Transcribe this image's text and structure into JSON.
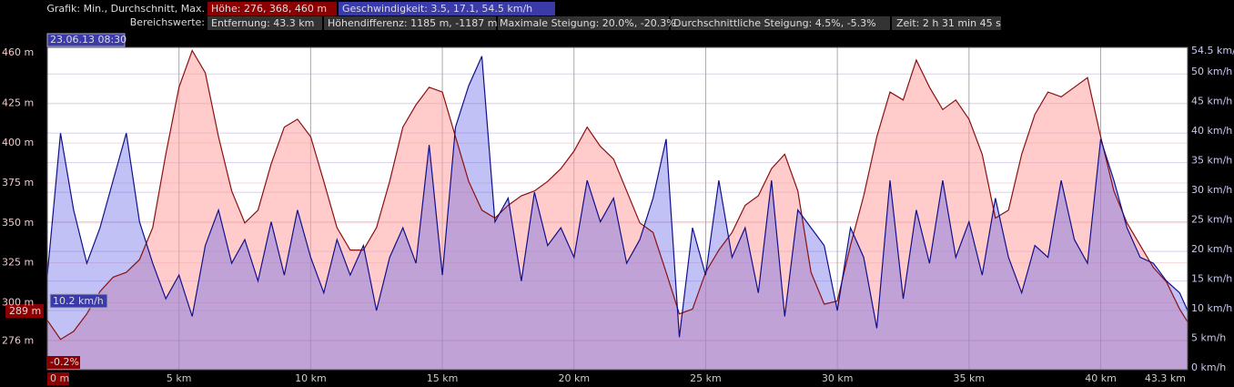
{
  "header": {
    "label": "Grafik: Min., Durchschnitt, Max.",
    "elevation_stats": "Höhe: 276, 368, 460 m",
    "speed_stats": "Geschwindigkeit: 3.5, 17.1, 54.5 km/h",
    "range_label": "Bereichswerte:",
    "range_values": [
      "Entfernung: 43.3 km",
      "Höhendifferenz: 1185 m, -1187 m",
      "Maximale Steigung: 20.0%, -20.3%",
      "Durchschnittliche Steigung: 4.5%, -5.3%",
      "Zeit: 2 h 31 min 45 s"
    ]
  },
  "cursor": {
    "time": "23.06.13 08:30",
    "speed": "10.2 km/h",
    "elevation": "289 m",
    "grade": "-0.2%"
  },
  "chart_data": {
    "type": "line",
    "x": [
      0,
      0.5,
      1,
      1.5,
      2,
      2.5,
      3,
      3.5,
      4,
      4.5,
      5,
      5.5,
      6,
      6.5,
      7,
      7.5,
      8,
      8.5,
      9,
      9.5,
      10,
      10.5,
      11,
      11.5,
      12,
      12.5,
      13,
      13.5,
      14,
      14.5,
      15,
      15.5,
      16,
      16.5,
      17,
      17.5,
      18,
      18.5,
      19,
      19.5,
      20,
      20.5,
      21,
      21.5,
      22,
      22.5,
      23,
      23.5,
      24,
      24.5,
      25,
      25.5,
      26,
      26.5,
      27,
      27.5,
      28,
      28.5,
      29,
      29.5,
      30,
      30.5,
      31,
      31.5,
      32,
      32.5,
      33,
      33.5,
      34,
      34.5,
      35,
      35.5,
      36,
      36.5,
      37,
      37.5,
      38,
      38.5,
      39,
      39.5,
      40,
      40.5,
      41,
      41.5,
      42,
      42.5,
      43,
      43.3
    ],
    "series": [
      {
        "color": "#8b1010",
        "fill": "rgba(255,160,160,0.55)",
        "values": [
          289,
          277,
          282,
          293,
          307,
          316,
          319,
          327,
          347,
          393,
          435,
          458,
          444,
          404,
          370,
          350,
          358,
          387,
          410,
          415,
          404,
          376,
          347,
          333,
          333,
          347,
          376,
          410,
          424,
          435,
          432,
          404,
          376,
          358,
          353,
          361,
          367,
          370,
          376,
          384,
          395,
          410,
          398,
          390,
          370,
          350,
          344,
          319,
          293,
          296,
          319,
          333,
          344,
          361,
          367,
          384,
          393,
          370,
          319,
          299,
          301,
          336,
          367,
          404,
          432,
          427,
          452,
          435,
          421,
          427,
          415,
          393,
          353,
          358,
          393,
          418,
          432,
          429,
          435,
          441,
          404,
          370,
          350,
          336,
          322,
          313,
          296,
          288
        ]
      },
      {
        "color": "#10108b",
        "fill": "rgba(100,100,230,0.4)",
        "axis": "y2",
        "values": [
          16,
          40,
          27,
          18,
          24,
          32,
          40,
          25,
          18,
          12,
          16,
          9,
          21,
          27,
          18,
          22,
          15,
          25,
          16,
          27,
          19,
          13,
          22,
          16,
          21,
          10,
          19,
          24,
          18,
          38,
          16,
          41,
          48,
          53,
          25,
          29,
          15,
          30,
          21,
          24,
          19,
          32,
          25,
          29,
          18,
          22,
          29,
          39,
          5.5,
          24,
          16,
          32,
          19,
          24,
          13,
          32,
          9,
          27,
          24,
          21,
          10,
          24,
          19,
          7,
          32,
          12,
          27,
          18,
          32,
          19,
          25,
          16,
          29,
          19,
          13,
          21,
          19,
          32,
          22,
          18,
          39,
          32,
          24,
          19,
          18,
          15,
          13,
          10
        ]
      }
    ],
    "xlim": [
      0,
      43.3
    ],
    "xticks": [
      {
        "value": 0,
        "label": "0 m"
      },
      {
        "value": 5,
        "label": "5 km"
      },
      {
        "value": 10,
        "label": "10 km"
      },
      {
        "value": 15,
        "label": "15 km"
      },
      {
        "value": 20,
        "label": "20 km"
      },
      {
        "value": 25,
        "label": "25 km"
      },
      {
        "value": 30,
        "label": "30 km"
      },
      {
        "value": 35,
        "label": "35 km"
      },
      {
        "value": 40,
        "label": "40 km"
      },
      {
        "value": 43.3,
        "label": "43.3 km"
      }
    ],
    "ylim": [
      258,
      460
    ],
    "yticks": [
      {
        "value": 276,
        "label": "276 m"
      },
      {
        "value": 300,
        "label": "300 m"
      },
      {
        "value": 325,
        "label": "325 m"
      },
      {
        "value": 350,
        "label": "350 m"
      },
      {
        "value": 375,
        "label": "375 m"
      },
      {
        "value": 400,
        "label": "400 m"
      },
      {
        "value": 425,
        "label": "425 m"
      },
      {
        "value": 460,
        "label": "460 m"
      }
    ],
    "y2lim": [
      0,
      54.5
    ],
    "y2ticks": [
      {
        "value": 0,
        "label": "0 km/h"
      },
      {
        "value": 5,
        "label": "5 km/h"
      },
      {
        "value": 10,
        "label": "10 km/h"
      },
      {
        "value": 15,
        "label": "15 km/h"
      },
      {
        "value": 20,
        "label": "20 km/h"
      },
      {
        "value": 25,
        "label": "25 km/h"
      },
      {
        "value": 30,
        "label": "30 km/h"
      },
      {
        "value": 35,
        "label": "35 km/h"
      },
      {
        "value": 40,
        "label": "40 km/h"
      },
      {
        "value": 45,
        "label": "45 km/h"
      },
      {
        "value": 50,
        "label": "50 km/h"
      },
      {
        "value": 54.5,
        "label": "54.5 km/h"
      }
    ],
    "grid": true
  }
}
